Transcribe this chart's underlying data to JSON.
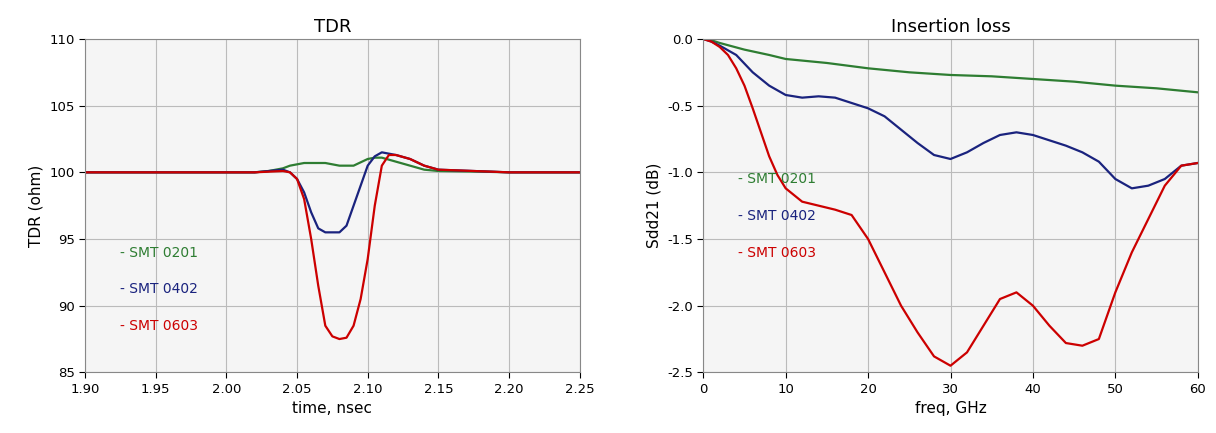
{
  "tdr_title": "TDR",
  "tdr_xlabel": "time, nsec",
  "tdr_ylabel": "TDR (ohm)",
  "tdr_xlim": [
    1.9,
    2.25
  ],
  "tdr_ylim": [
    85,
    110
  ],
  "tdr_yticks": [
    85,
    90,
    95,
    100,
    105,
    110
  ],
  "tdr_xticks": [
    1.9,
    1.95,
    2.0,
    2.05,
    2.1,
    2.15,
    2.2,
    2.25
  ],
  "il_title": "Insertion loss",
  "il_xlabel": "freq, GHz",
  "il_ylabel": "Sdd21 (dB)",
  "il_xlim": [
    0,
    60
  ],
  "il_ylim": [
    -2.5,
    0.0
  ],
  "il_yticks": [
    0.0,
    -0.5,
    -1.0,
    -1.5,
    -2.0,
    -2.5
  ],
  "il_xticks": [
    0,
    10,
    20,
    30,
    40,
    50,
    60
  ],
  "colors": {
    "smt0201": "#2e7d32",
    "smt0402": "#1a237e",
    "smt0603": "#cc0000"
  },
  "legend_labels": [
    "- SMT 0201",
    "- SMT 0402",
    "- SMT 0603"
  ],
  "tdr_smt0201_x": [
    1.9,
    1.95,
    2.0,
    2.02,
    2.03,
    2.04,
    2.045,
    2.05,
    2.055,
    2.06,
    2.07,
    2.08,
    2.09,
    2.1,
    2.105,
    2.11,
    2.12,
    2.13,
    2.14,
    2.15,
    2.18,
    2.2,
    2.25
  ],
  "tdr_smt0201_y": [
    100.0,
    100.0,
    100.0,
    100.0,
    100.1,
    100.3,
    100.5,
    100.6,
    100.7,
    100.7,
    100.7,
    100.5,
    100.5,
    101.0,
    101.1,
    101.1,
    100.8,
    100.5,
    100.2,
    100.1,
    100.05,
    100.0,
    100.0
  ],
  "tdr_smt0402_x": [
    1.9,
    1.95,
    2.0,
    2.02,
    2.04,
    2.045,
    2.05,
    2.055,
    2.06,
    2.065,
    2.07,
    2.08,
    2.085,
    2.09,
    2.095,
    2.1,
    2.105,
    2.11,
    2.12,
    2.13,
    2.14,
    2.15,
    2.2,
    2.25
  ],
  "tdr_smt0402_y": [
    100.0,
    100.0,
    100.0,
    100.0,
    100.2,
    100.0,
    99.5,
    98.5,
    97.0,
    95.8,
    95.5,
    95.5,
    96.0,
    97.5,
    99.0,
    100.5,
    101.2,
    101.5,
    101.3,
    101.0,
    100.5,
    100.2,
    100.0,
    100.0
  ],
  "tdr_smt0603_x": [
    1.9,
    1.95,
    2.0,
    2.02,
    2.04,
    2.045,
    2.05,
    2.055,
    2.06,
    2.065,
    2.07,
    2.075,
    2.08,
    2.085,
    2.09,
    2.095,
    2.1,
    2.105,
    2.11,
    2.115,
    2.12,
    2.13,
    2.14,
    2.15,
    2.2,
    2.25
  ],
  "tdr_smt0603_y": [
    100.0,
    100.0,
    100.0,
    100.0,
    100.1,
    100.0,
    99.5,
    98.0,
    95.0,
    91.5,
    88.5,
    87.7,
    87.5,
    87.6,
    88.5,
    90.5,
    93.5,
    97.5,
    100.5,
    101.3,
    101.3,
    101.0,
    100.5,
    100.2,
    100.0,
    100.0
  ],
  "il_smt0201_x": [
    0,
    1,
    2,
    5,
    8,
    10,
    15,
    20,
    25,
    30,
    35,
    40,
    45,
    50,
    55,
    60
  ],
  "il_smt0201_y": [
    0.0,
    -0.01,
    -0.03,
    -0.08,
    -0.12,
    -0.15,
    -0.18,
    -0.22,
    -0.25,
    -0.27,
    -0.28,
    -0.3,
    -0.32,
    -0.35,
    -0.37,
    -0.4
  ],
  "il_smt0402_x": [
    0,
    1,
    2,
    4,
    6,
    8,
    10,
    12,
    14,
    16,
    18,
    20,
    22,
    24,
    26,
    28,
    30,
    32,
    34,
    36,
    38,
    40,
    42,
    44,
    46,
    48,
    50,
    52,
    54,
    56,
    58,
    60
  ],
  "il_smt0402_y": [
    0.0,
    -0.02,
    -0.05,
    -0.12,
    -0.25,
    -0.35,
    -0.42,
    -0.44,
    -0.43,
    -0.44,
    -0.48,
    -0.52,
    -0.58,
    -0.68,
    -0.78,
    -0.87,
    -0.9,
    -0.85,
    -0.78,
    -0.72,
    -0.7,
    -0.72,
    -0.76,
    -0.8,
    -0.85,
    -0.92,
    -1.05,
    -1.12,
    -1.1,
    -1.05,
    -0.95,
    -0.93
  ],
  "il_smt0603_x": [
    0,
    1,
    2,
    3,
    4,
    5,
    6,
    7,
    8,
    9,
    10,
    12,
    14,
    16,
    18,
    20,
    22,
    24,
    26,
    28,
    30,
    32,
    34,
    36,
    38,
    40,
    42,
    44,
    46,
    48,
    50,
    52,
    54,
    56,
    58,
    60
  ],
  "il_smt0603_y": [
    0.0,
    -0.02,
    -0.06,
    -0.12,
    -0.22,
    -0.35,
    -0.52,
    -0.7,
    -0.88,
    -1.02,
    -1.12,
    -1.22,
    -1.25,
    -1.28,
    -1.32,
    -1.5,
    -1.75,
    -2.0,
    -2.2,
    -2.38,
    -2.45,
    -2.35,
    -2.15,
    -1.95,
    -1.9,
    -2.0,
    -2.15,
    -2.28,
    -2.3,
    -2.25,
    -1.9,
    -1.6,
    -1.35,
    -1.1,
    -0.95,
    -0.93
  ],
  "bg_color": "#f5f5f5",
  "figure_bg": "#ffffff",
  "grid_color": "#bbbbbb",
  "linewidth": 1.6
}
